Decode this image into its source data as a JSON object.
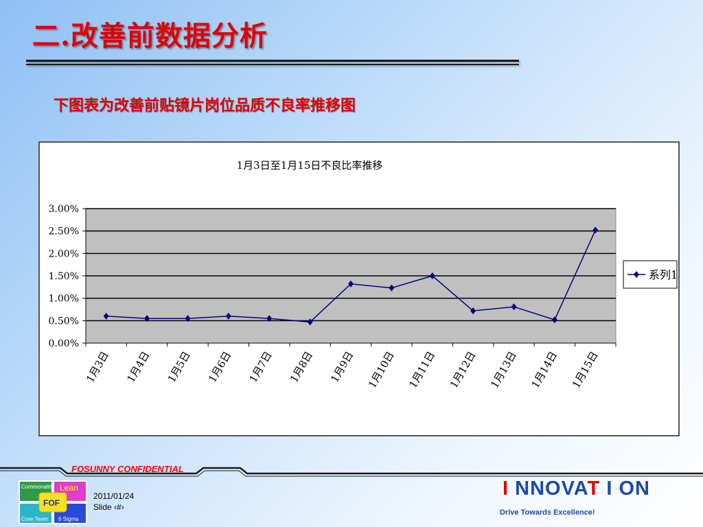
{
  "slide": {
    "title": "二.改善前数据分析",
    "subtitle": "下图表为改善前贴镜片岗位品质不良率推移图"
  },
  "chart_data": {
    "type": "line",
    "title": "1月3日至1月15日不良比率推移",
    "categories": [
      "1月3日",
      "1月4日",
      "1月5日",
      "1月6日",
      "1月7日",
      "1月8日",
      "1月9日",
      "1月10日",
      "1月11日",
      "1月12日",
      "1月13日",
      "1月14日",
      "1月15日"
    ],
    "series": [
      {
        "name": "系列1",
        "values": [
          0.6,
          0.55,
          0.55,
          0.6,
          0.55,
          0.47,
          1.32,
          1.23,
          1.5,
          0.72,
          0.81,
          0.52,
          2.52
        ],
        "color": "#000080"
      }
    ],
    "yunit": "%",
    "ylim": [
      0,
      3
    ],
    "yticks": [
      "0.00%",
      "0.50%",
      "1.00%",
      "1.50%",
      "2.00%",
      "2.50%",
      "3.00%"
    ],
    "grid": true,
    "plot_background": "#c0c0c0",
    "legend_position": "right"
  },
  "footer": {
    "confidential": "FOSUNNY CONFIDENTIAL",
    "date": "2011/01/24",
    "slide_label": "Slide ‹#›",
    "logo": {
      "tiles": [
        "Commonality",
        "Lean",
        "FOF",
        "Core Team",
        "6 Sigma"
      ]
    },
    "brand": {
      "parts": [
        {
          "text": "I",
          "hl": true
        },
        {
          "text": " NNOVA",
          "hl": false
        },
        {
          "text": "T",
          "hl": true
        },
        {
          "text": " I ",
          "hl": false
        },
        {
          "text": "ON",
          "hl": false
        }
      ],
      "highlight_color": "#e00000",
      "base_color": "#1a4aa8"
    },
    "tagline": "Drive Towards Excellence!"
  }
}
